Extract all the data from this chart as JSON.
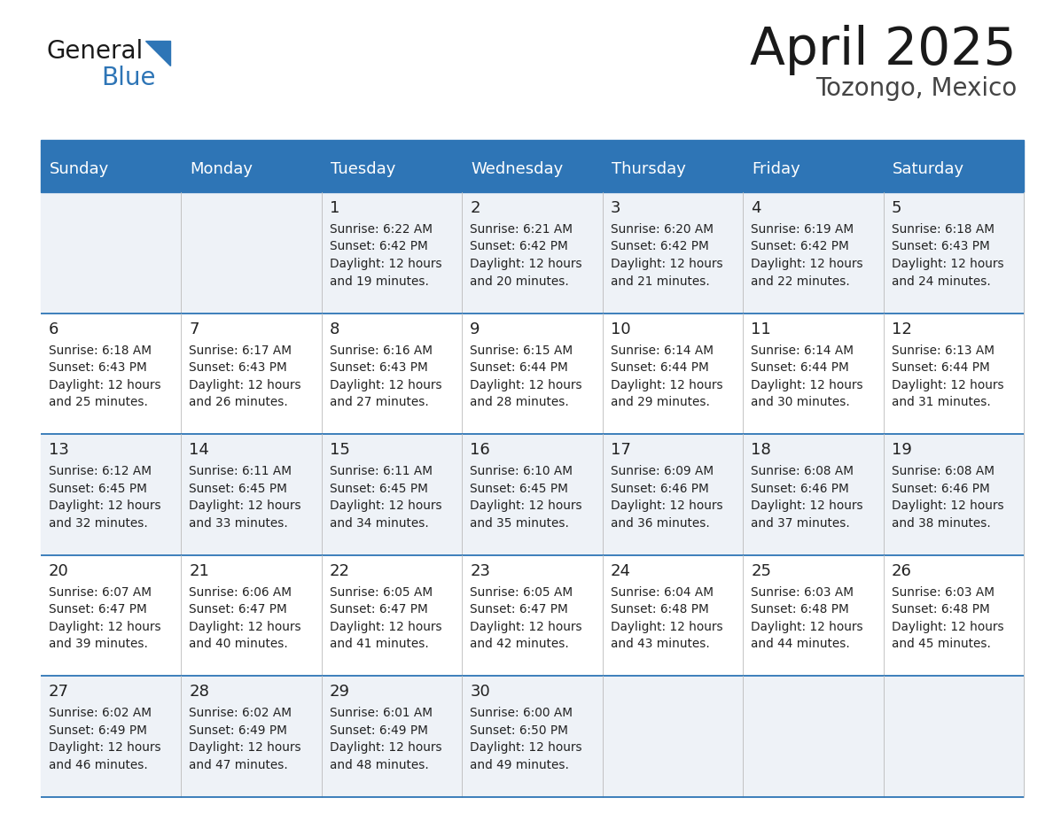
{
  "title": "April 2025",
  "subtitle": "Tozongo, Mexico",
  "days_of_week": [
    "Sunday",
    "Monday",
    "Tuesday",
    "Wednesday",
    "Thursday",
    "Friday",
    "Saturday"
  ],
  "header_bg": "#2E75B6",
  "header_text": "#FFFFFF",
  "row_bg_odd": "#EEF2F7",
  "row_bg_even": "#FFFFFF",
  "cell_text_color": "#222222",
  "title_color": "#1a1a1a",
  "subtitle_color": "#444444",
  "border_color": "#2E75B6",
  "logo_general_color": "#1a1a1a",
  "logo_blue_color": "#2E75B6",
  "logo_triangle_color": "#2E75B6",
  "calendar": [
    [
      null,
      null,
      {
        "day": 1,
        "sunrise": "6:22 AM",
        "sunset": "6:42 PM",
        "dl1": "Daylight: 12 hours",
        "dl2": "and 19 minutes."
      },
      {
        "day": 2,
        "sunrise": "6:21 AM",
        "sunset": "6:42 PM",
        "dl1": "Daylight: 12 hours",
        "dl2": "and 20 minutes."
      },
      {
        "day": 3,
        "sunrise": "6:20 AM",
        "sunset": "6:42 PM",
        "dl1": "Daylight: 12 hours",
        "dl2": "and 21 minutes."
      },
      {
        "day": 4,
        "sunrise": "6:19 AM",
        "sunset": "6:42 PM",
        "dl1": "Daylight: 12 hours",
        "dl2": "and 22 minutes."
      },
      {
        "day": 5,
        "sunrise": "6:18 AM",
        "sunset": "6:43 PM",
        "dl1": "Daylight: 12 hours",
        "dl2": "and 24 minutes."
      }
    ],
    [
      {
        "day": 6,
        "sunrise": "6:18 AM",
        "sunset": "6:43 PM",
        "dl1": "Daylight: 12 hours",
        "dl2": "and 25 minutes."
      },
      {
        "day": 7,
        "sunrise": "6:17 AM",
        "sunset": "6:43 PM",
        "dl1": "Daylight: 12 hours",
        "dl2": "and 26 minutes."
      },
      {
        "day": 8,
        "sunrise": "6:16 AM",
        "sunset": "6:43 PM",
        "dl1": "Daylight: 12 hours",
        "dl2": "and 27 minutes."
      },
      {
        "day": 9,
        "sunrise": "6:15 AM",
        "sunset": "6:44 PM",
        "dl1": "Daylight: 12 hours",
        "dl2": "and 28 minutes."
      },
      {
        "day": 10,
        "sunrise": "6:14 AM",
        "sunset": "6:44 PM",
        "dl1": "Daylight: 12 hours",
        "dl2": "and 29 minutes."
      },
      {
        "day": 11,
        "sunrise": "6:14 AM",
        "sunset": "6:44 PM",
        "dl1": "Daylight: 12 hours",
        "dl2": "and 30 minutes."
      },
      {
        "day": 12,
        "sunrise": "6:13 AM",
        "sunset": "6:44 PM",
        "dl1": "Daylight: 12 hours",
        "dl2": "and 31 minutes."
      }
    ],
    [
      {
        "day": 13,
        "sunrise": "6:12 AM",
        "sunset": "6:45 PM",
        "dl1": "Daylight: 12 hours",
        "dl2": "and 32 minutes."
      },
      {
        "day": 14,
        "sunrise": "6:11 AM",
        "sunset": "6:45 PM",
        "dl1": "Daylight: 12 hours",
        "dl2": "and 33 minutes."
      },
      {
        "day": 15,
        "sunrise": "6:11 AM",
        "sunset": "6:45 PM",
        "dl1": "Daylight: 12 hours",
        "dl2": "and 34 minutes."
      },
      {
        "day": 16,
        "sunrise": "6:10 AM",
        "sunset": "6:45 PM",
        "dl1": "Daylight: 12 hours",
        "dl2": "and 35 minutes."
      },
      {
        "day": 17,
        "sunrise": "6:09 AM",
        "sunset": "6:46 PM",
        "dl1": "Daylight: 12 hours",
        "dl2": "and 36 minutes."
      },
      {
        "day": 18,
        "sunrise": "6:08 AM",
        "sunset": "6:46 PM",
        "dl1": "Daylight: 12 hours",
        "dl2": "and 37 minutes."
      },
      {
        "day": 19,
        "sunrise": "6:08 AM",
        "sunset": "6:46 PM",
        "dl1": "Daylight: 12 hours",
        "dl2": "and 38 minutes."
      }
    ],
    [
      {
        "day": 20,
        "sunrise": "6:07 AM",
        "sunset": "6:47 PM",
        "dl1": "Daylight: 12 hours",
        "dl2": "and 39 minutes."
      },
      {
        "day": 21,
        "sunrise": "6:06 AM",
        "sunset": "6:47 PM",
        "dl1": "Daylight: 12 hours",
        "dl2": "and 40 minutes."
      },
      {
        "day": 22,
        "sunrise": "6:05 AM",
        "sunset": "6:47 PM",
        "dl1": "Daylight: 12 hours",
        "dl2": "and 41 minutes."
      },
      {
        "day": 23,
        "sunrise": "6:05 AM",
        "sunset": "6:47 PM",
        "dl1": "Daylight: 12 hours",
        "dl2": "and 42 minutes."
      },
      {
        "day": 24,
        "sunrise": "6:04 AM",
        "sunset": "6:48 PM",
        "dl1": "Daylight: 12 hours",
        "dl2": "and 43 minutes."
      },
      {
        "day": 25,
        "sunrise": "6:03 AM",
        "sunset": "6:48 PM",
        "dl1": "Daylight: 12 hours",
        "dl2": "and 44 minutes."
      },
      {
        "day": 26,
        "sunrise": "6:03 AM",
        "sunset": "6:48 PM",
        "dl1": "Daylight: 12 hours",
        "dl2": "and 45 minutes."
      }
    ],
    [
      {
        "day": 27,
        "sunrise": "6:02 AM",
        "sunset": "6:49 PM",
        "dl1": "Daylight: 12 hours",
        "dl2": "and 46 minutes."
      },
      {
        "day": 28,
        "sunrise": "6:02 AM",
        "sunset": "6:49 PM",
        "dl1": "Daylight: 12 hours",
        "dl2": "and 47 minutes."
      },
      {
        "day": 29,
        "sunrise": "6:01 AM",
        "sunset": "6:49 PM",
        "dl1": "Daylight: 12 hours",
        "dl2": "and 48 minutes."
      },
      {
        "day": 30,
        "sunrise": "6:00 AM",
        "sunset": "6:50 PM",
        "dl1": "Daylight: 12 hours",
        "dl2": "and 49 minutes."
      },
      null,
      null,
      null
    ]
  ]
}
